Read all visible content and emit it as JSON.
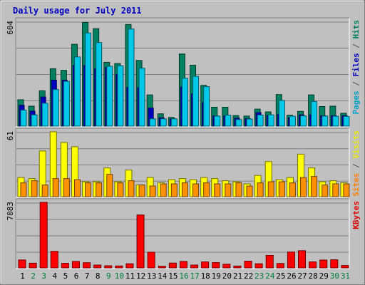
{
  "chart_data": {
    "type": "bar",
    "title": "Daily usage for July 2011",
    "categories": [
      "1",
      "2",
      "3",
      "4",
      "5",
      "6",
      "7",
      "8",
      "9",
      "10",
      "11",
      "12",
      "13",
      "14",
      "15",
      "16",
      "17",
      "18",
      "19",
      "20",
      "21",
      "22",
      "23",
      "24",
      "25",
      "26",
      "27",
      "28",
      "29",
      "30",
      "31"
    ],
    "weekend_days": [
      "2",
      "3",
      "9",
      "10",
      "16",
      "17",
      "23",
      "24",
      "30",
      "31"
    ],
    "panels": [
      {
        "ymax_label": "604",
        "ymax": 604,
        "grid": true,
        "side_label": {
          "parts": [
            {
              "text": "Pages",
              "color": "#00a0c8"
            },
            {
              "text": " / ",
              "color": "#505050"
            },
            {
              "text": "Files",
              "color": "#0000c0"
            },
            {
              "text": " / ",
              "color": "#505050"
            },
            {
              "text": "Hits",
              "color": "#008060"
            }
          ]
        },
        "series": [
          {
            "name": "Hits",
            "color": "#008060",
            "values": [
              152,
              115,
              204,
              331,
              322,
              472,
              598,
              562,
              368,
              361,
              586,
              379,
              180,
              71,
              50,
              416,
              351,
              235,
              109,
              109,
              61,
              58,
              98,
              82,
              182,
              63,
              85,
              180,
              113,
              115,
              74
            ]
          },
          {
            "name": "Files",
            "color": "#0000c0",
            "values": [
              120,
              86,
              168,
              265,
              265,
              350,
              350,
              330,
              338,
              299,
              224,
              222,
              104,
              48,
              42,
              226,
              186,
              136,
              59,
              59,
              46,
              43,
              78,
              62,
              67,
              48,
              65,
              65,
              60,
              60,
              60
            ]
          },
          {
            "name": "Pages",
            "color": "#00c8e8",
            "values": [
              92,
              65,
              132,
              211,
              258,
              399,
              537,
              482,
              345,
              348,
              560,
              334,
              42,
              42,
              42,
              276,
              287,
              228,
              58,
              63,
              38,
              41,
              64,
              65,
              148,
              57,
              59,
              142,
              58,
              57,
              56
            ]
          }
        ]
      },
      {
        "ymax_label": "61",
        "ymax": 61,
        "grid": true,
        "side_label": {
          "parts": [
            {
              "text": "Sites",
              "color": "#ff8000"
            },
            {
              "text": " / ",
              "color": "#505050"
            },
            {
              "text": "Visits",
              "color": "#e8e800"
            }
          ]
        },
        "series": [
          {
            "name": "Visits",
            "color": "#ffff00",
            "values": [
              18,
              17,
              43,
              61,
              51,
              47,
              14,
              14,
              27,
              14,
              25,
              11,
              18,
              13,
              16,
              17,
              16,
              18,
              17,
              15,
              14,
              12,
              20,
              33,
              16,
              18,
              40,
              27,
              14,
              15,
              13
            ]
          },
          {
            "name": "Sites",
            "color": "#ff9000",
            "values": [
              13,
              15,
              11,
              17,
              17,
              16,
              13,
              13,
              21,
              13,
              15,
              11,
              10,
              12,
              12,
              13,
              12,
              13,
              12,
              12,
              13,
              10,
              13,
              14,
              14,
              13,
              18,
              19,
              11,
              12,
              12
            ]
          }
        ]
      },
      {
        "ymax_label": "7083",
        "ymax": 7083,
        "grid": true,
        "side_label": {
          "parts": [
            {
              "text": "KBytes",
              "color": "#e00000"
            }
          ]
        },
        "series": [
          {
            "name": "KBytes",
            "color": "#ff0000",
            "values": [
              860,
              510,
              7083,
              1790,
              495,
              700,
              560,
              310,
              230,
              210,
              450,
              5720,
              1700,
              180,
              520,
              700,
              310,
              650,
              580,
              400,
              200,
              730,
              450,
              1350,
              480,
              1720,
              1860,
              650,
              850,
              880,
              260
            ]
          }
        ]
      }
    ]
  }
}
